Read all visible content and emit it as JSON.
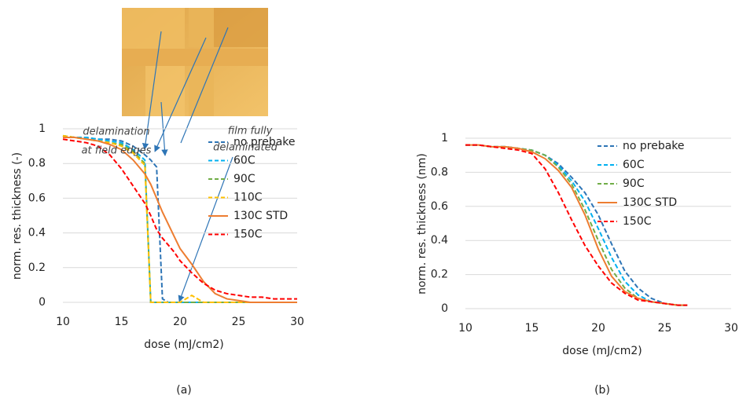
{
  "chart_data": [
    {
      "type": "line",
      "x_label": "dose (mJ/cm2)",
      "y_label": "norm. res. thickness (-)",
      "panel_label": "(a)",
      "x": [
        10,
        11,
        12,
        13,
        14,
        15,
        16,
        17,
        17.5,
        18,
        18.5,
        19,
        19.5,
        20,
        21,
        22,
        23,
        24,
        25,
        26,
        27,
        28,
        29,
        30
      ],
      "xlim": [
        10,
        30
      ],
      "xticks": [
        10,
        15,
        20,
        25,
        30
      ],
      "ylim": [
        0,
        1
      ],
      "yticks": [
        0,
        0.2,
        0.4,
        0.6,
        0.8,
        1
      ],
      "grid": true,
      "legend": "upper right",
      "series": [
        {
          "name": "no prebake",
          "color": "#2e75b6",
          "dashed": true,
          "values": [
            0.96,
            0.95,
            0.95,
            0.94,
            0.94,
            0.93,
            0.9,
            0.85,
            0.82,
            0.78,
            0.02,
            0,
            0,
            0,
            0,
            0,
            0,
            0,
            0,
            0,
            0,
            0,
            0,
            0
          ]
        },
        {
          "name": "60C",
          "color": "#00b0f0",
          "dashed": true,
          "values": [
            0.96,
            0.95,
            0.95,
            0.94,
            0.93,
            0.92,
            0.88,
            0.82,
            0,
            0,
            0,
            0,
            0,
            0,
            0,
            0,
            0,
            0,
            0,
            0,
            0,
            0,
            0,
            0
          ]
        },
        {
          "name": "90C",
          "color": "#70ad47",
          "dashed": true,
          "values": [
            0.96,
            0.95,
            0.94,
            0.93,
            0.92,
            0.91,
            0.87,
            0.8,
            0,
            0,
            0,
            0,
            0,
            0,
            0,
            0,
            0,
            0,
            0,
            0,
            0,
            0,
            0,
            0
          ]
        },
        {
          "name": "110C",
          "color": "#ffc000",
          "dashed": true,
          "values": [
            0.96,
            0.95,
            0.94,
            0.93,
            0.92,
            0.9,
            0.86,
            0.79,
            0,
            0,
            0,
            0,
            0,
            0,
            0.04,
            0,
            0,
            0,
            0,
            0,
            0,
            0,
            0,
            0
          ]
        },
        {
          "name": "130C STD",
          "color": "#ed7d31",
          "dashed": false,
          "values": [
            0.95,
            0.95,
            0.94,
            0.93,
            0.91,
            0.88,
            0.82,
            0.74,
            0.68,
            0.6,
            0.52,
            0.45,
            0.38,
            0.31,
            0.22,
            0.12,
            0.05,
            0.02,
            0.01,
            0,
            0,
            0,
            0,
            0
          ]
        },
        {
          "name": "150C",
          "color": "#ff0000",
          "dashed": true,
          "values": [
            0.94,
            0.93,
            0.92,
            0.9,
            0.85,
            0.77,
            0.67,
            0.57,
            0.5,
            0.42,
            0.37,
            0.33,
            0.29,
            0.24,
            0.17,
            0.11,
            0.07,
            0.05,
            0.04,
            0.03,
            0.03,
            0.02,
            0.02,
            0.02
          ]
        }
      ],
      "annotations": [
        {
          "lines": [
            "delamination",
            "at field edges"
          ]
        },
        {
          "lines": [
            "film fully",
            "delaminated"
          ]
        }
      ]
    },
    {
      "type": "line",
      "x_label": "dose (mJ/cm2)",
      "y_label": "norm. res. thickness (nm)",
      "panel_label": "(b)",
      "x": [
        10,
        11,
        12,
        13,
        14,
        15,
        16,
        17,
        18,
        19,
        20,
        21,
        22,
        23,
        24,
        25,
        26,
        26.7
      ],
      "xlim": [
        10,
        30
      ],
      "xticks": [
        10,
        15,
        20,
        25,
        30
      ],
      "ylim": [
        0,
        1
      ],
      "yticks": [
        0,
        0.2,
        0.4,
        0.6,
        0.8,
        1
      ],
      "grid": true,
      "legend": "upper right",
      "series": [
        {
          "name": "no prebake",
          "color": "#2e75b6",
          "dashed": true,
          "values": [
            0.96,
            0.96,
            0.95,
            0.95,
            0.94,
            0.93,
            0.9,
            0.85,
            0.77,
            0.68,
            0.55,
            0.38,
            0.22,
            0.12,
            0.06,
            0.03,
            0.02,
            0.02
          ]
        },
        {
          "name": "60C",
          "color": "#00b0f0",
          "dashed": true,
          "values": [
            0.96,
            0.96,
            0.95,
            0.95,
            0.94,
            0.93,
            0.9,
            0.84,
            0.75,
            0.63,
            0.47,
            0.3,
            0.16,
            0.08,
            0.04,
            0.03,
            0.02,
            0.02
          ]
        },
        {
          "name": "90C",
          "color": "#70ad47",
          "dashed": true,
          "values": [
            0.96,
            0.96,
            0.95,
            0.95,
            0.94,
            0.93,
            0.9,
            0.83,
            0.73,
            0.58,
            0.4,
            0.23,
            0.12,
            0.06,
            0.04,
            0.03,
            0.02,
            0.02
          ]
        },
        {
          "name": "130C STD",
          "color": "#ed7d31",
          "dashed": false,
          "values": [
            0.96,
            0.96,
            0.95,
            0.95,
            0.94,
            0.92,
            0.88,
            0.81,
            0.71,
            0.55,
            0.35,
            0.19,
            0.1,
            0.06,
            0.04,
            0.03,
            0.02,
            0.02
          ]
        },
        {
          "name": "150C",
          "color": "#ff0000",
          "dashed": true,
          "values": [
            0.96,
            0.96,
            0.95,
            0.94,
            0.93,
            0.91,
            0.82,
            0.68,
            0.52,
            0.37,
            0.25,
            0.15,
            0.09,
            0.05,
            0.04,
            0.03,
            0.02,
            0.02
          ]
        }
      ]
    }
  ]
}
